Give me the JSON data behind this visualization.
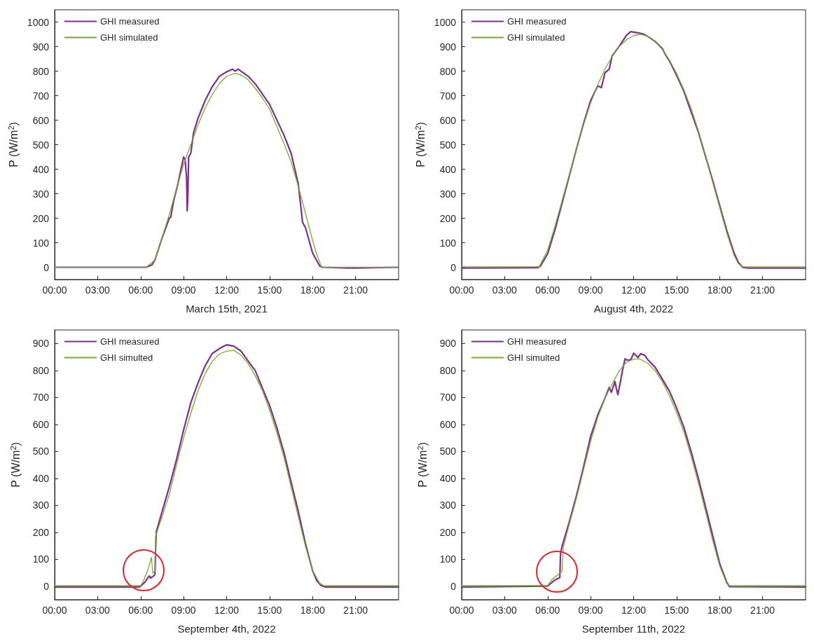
{
  "chart_data": [
    {
      "type": "line",
      "xlabel": "March 15th, 2021",
      "ylabel": "P (W/m$^{2}$)",
      "xlim": [
        0,
        24
      ],
      "ylim": [
        -50,
        1050
      ],
      "xticks": [
        {
          "value": 0,
          "label": "00:00"
        },
        {
          "value": 3,
          "label": "03:00"
        },
        {
          "value": 6,
          "label": "06:00"
        },
        {
          "value": 9,
          "label": "09:00"
        },
        {
          "value": 12,
          "label": "12:00"
        },
        {
          "value": 15,
          "label": "15:00"
        },
        {
          "value": 18,
          "label": "18:00"
        },
        {
          "value": 21,
          "label": "21:00"
        }
      ],
      "yticks": [
        0,
        100,
        200,
        300,
        400,
        500,
        600,
        700,
        800,
        900,
        1000
      ],
      "grid": false,
      "legend": "top left",
      "marker": "none",
      "line_style": "solid",
      "series": [
        {
          "name": "GHI measured",
          "color": "#7e2f8e",
          "x": [
            0,
            6.4,
            6.8,
            7,
            7.5,
            8,
            8.1,
            8.3,
            8.6,
            9,
            9.1,
            9.2,
            9.25,
            9.3,
            9.35,
            9.5,
            9.7,
            10,
            10.5,
            11,
            11.5,
            12,
            12.4,
            12.6,
            12.8,
            13.5,
            14,
            15,
            16,
            16.5,
            17,
            17.3,
            17.5,
            18,
            18.5,
            18.7,
            20.5,
            21,
            24
          ],
          "values": [
            0,
            0,
            10,
            30,
            120,
            200,
            204,
            270,
            340,
            450,
            440,
            371,
            230,
            298,
            450,
            465,
            550,
            607,
            680,
            737,
            779,
            797,
            808,
            800,
            808,
            779,
            748,
            664,
            539,
            465,
            340,
            183,
            162,
            58,
            5,
            0,
            -3,
            -3,
            0
          ]
        },
        {
          "name": "GHI simulated",
          "color": "#77ac30",
          "x": [
            0,
            6.4,
            7,
            7.5,
            8,
            8.5,
            9,
            9.5,
            10,
            10.5,
            11,
            11.5,
            12,
            12.6,
            13,
            13.5,
            14,
            14.5,
            15,
            15.5,
            16,
            16.5,
            17,
            17.5,
            18,
            18.3,
            18.6,
            18.7,
            24
          ],
          "values": [
            0,
            0,
            30,
            120,
            215,
            320,
            420,
            500,
            580,
            650,
            705,
            750,
            780,
            791,
            785,
            765,
            730,
            690,
            645,
            575,
            505,
            430,
            330,
            220,
            110,
            50,
            5,
            0,
            0
          ]
        }
      ]
    },
    {
      "type": "line",
      "xlabel": "August 4th, 2022",
      "ylabel": "P (W/m$^{2}$)",
      "xlim": [
        0,
        24
      ],
      "ylim": [
        -50,
        1050
      ],
      "xticks": [
        {
          "value": 0,
          "label": "00:00"
        },
        {
          "value": 3,
          "label": "03:00"
        },
        {
          "value": 6,
          "label": "06:00"
        },
        {
          "value": 9,
          "label": "09:00"
        },
        {
          "value": 12,
          "label": "12:00"
        },
        {
          "value": 15,
          "label": "15:00"
        },
        {
          "value": 18,
          "label": "18:00"
        },
        {
          "value": 21,
          "label": "21:00"
        }
      ],
      "yticks": [
        0,
        100,
        200,
        300,
        400,
        500,
        600,
        700,
        800,
        900,
        1000
      ],
      "grid": false,
      "legend": "top left",
      "marker": "none",
      "line_style": "solid",
      "series": [
        {
          "name": "GHI measured",
          "color": "#7e2f8e",
          "x": [
            0,
            5.3,
            5.5,
            6,
            6.5,
            7,
            7.5,
            8,
            8.5,
            9,
            9.5,
            9.75,
            10,
            10.3,
            10.5,
            11,
            11.5,
            11.8,
            12,
            12.3,
            12.7,
            13,
            13.5,
            14,
            14.2,
            14.5,
            15,
            15.5,
            16,
            16.5,
            17,
            17.5,
            18,
            18.5,
            19,
            19.3,
            19.6,
            20,
            24
          ],
          "values": [
            -3,
            -2,
            5,
            55,
            150,
            260,
            370,
            480,
            585,
            680,
            740,
            733,
            793,
            808,
            862,
            902,
            946,
            961,
            959,
            956,
            951,
            941,
            921,
            892,
            869,
            842,
            783,
            719,
            635,
            555,
            456,
            357,
            253,
            150,
            60,
            21,
            0,
            -3,
            -3
          ]
        },
        {
          "name": "GHI simulated",
          "color": "#77ac30",
          "x": [
            0,
            5.4,
            5.5,
            6,
            6.5,
            7,
            7.5,
            8,
            8.5,
            9,
            9.5,
            10,
            10.5,
            11,
            11.5,
            12,
            12.5,
            13,
            13.5,
            14,
            14.5,
            15,
            15.5,
            16,
            16.5,
            17,
            17.5,
            18,
            18.5,
            19,
            19.3,
            19.6,
            24
          ],
          "values": [
            2,
            2,
            12,
            70,
            165,
            270,
            375,
            480,
            580,
            670,
            745,
            808,
            860,
            900,
            928,
            945,
            950,
            942,
            922,
            888,
            845,
            790,
            725,
            650,
            560,
            460,
            350,
            245,
            140,
            50,
            15,
            2,
            2
          ]
        }
      ]
    },
    {
      "type": "line",
      "xlabel": "September 4th, 2022",
      "ylabel": "P (W/m$^{2}$)",
      "xlim": [
        0,
        24
      ],
      "ylim": [
        -50,
        950
      ],
      "xticks": [
        {
          "value": 0,
          "label": "00:00"
        },
        {
          "value": 3,
          "label": "03:00"
        },
        {
          "value": 6,
          "label": "06:00"
        },
        {
          "value": 9,
          "label": "09:00"
        },
        {
          "value": 12,
          "label": "12:00"
        },
        {
          "value": 15,
          "label": "15:00"
        },
        {
          "value": 18,
          "label": "18:00"
        },
        {
          "value": 21,
          "label": "21:00"
        }
      ],
      "yticks": [
        0,
        100,
        200,
        300,
        400,
        500,
        600,
        700,
        800,
        900
      ],
      "grid": false,
      "legend": "top left",
      "marker": "none",
      "line_style": "solid",
      "series": [
        {
          "name": "GHI measured",
          "color": "#7e2f8e",
          "x": [
            0,
            5.9,
            6,
            6.3,
            6.6,
            6.7,
            6.9,
            7,
            7.05,
            7.1,
            7.5,
            8,
            8.5,
            9,
            9.5,
            10,
            10.5,
            11,
            11.5,
            12,
            12.5,
            13,
            13.5,
            14,
            14.5,
            15,
            15.5,
            16,
            16.5,
            17,
            17.5,
            18,
            18.3,
            18.6,
            18.9,
            24
          ],
          "values": [
            -3,
            -3,
            0,
            15,
            38,
            30,
            38,
            43,
            148,
            203,
            277,
            368,
            469,
            579,
            680,
            753,
            817,
            863,
            881,
            895,
            890,
            872,
            835,
            799,
            734,
            670,
            588,
            496,
            386,
            277,
            158,
            57,
            20,
            2,
            -3,
            -3
          ]
        },
        {
          "name": "GHI simulted",
          "color": "#77ac30",
          "x": [
            0,
            5.9,
            6,
            6.2,
            6.5,
            6.75,
            6.85,
            7,
            7.05,
            7.1,
            7.5,
            8,
            8.5,
            9,
            9.5,
            10,
            10.5,
            11,
            11.5,
            12,
            12.5,
            13,
            13.5,
            14,
            14.5,
            15,
            15.5,
            16,
            16.5,
            17,
            17.5,
            18,
            18.5,
            18.8,
            24
          ],
          "values": [
            2,
            2,
            2,
            20,
            60,
            107,
            48,
            55,
            185,
            194,
            258,
            340,
            450,
            550,
            641,
            724,
            788,
            834,
            861,
            871,
            875,
            857,
            825,
            780,
            725,
            652,
            570,
            478,
            368,
            258,
            148,
            57,
            11,
            2,
            2
          ]
        }
      ]
    },
    {
      "type": "line",
      "xlabel": "September 11th, 2022",
      "ylabel": "P (W/m$^{2}$)",
      "xlim": [
        0,
        24
      ],
      "ylim": [
        -50,
        950
      ],
      "xticks": [
        {
          "value": 0,
          "label": "00:00"
        },
        {
          "value": 3,
          "label": "03:00"
        },
        {
          "value": 6,
          "label": "06:00"
        },
        {
          "value": 9,
          "label": "09:00"
        },
        {
          "value": 12,
          "label": "12:00"
        },
        {
          "value": 15,
          "label": "15:00"
        },
        {
          "value": 18,
          "label": "18:00"
        },
        {
          "value": 21,
          "label": "21:00"
        }
      ],
      "yticks": [
        0,
        100,
        200,
        300,
        400,
        500,
        600,
        700,
        800,
        900
      ],
      "grid": false,
      "legend": "top left",
      "marker": "none",
      "line_style": "solid",
      "series": [
        {
          "name": "GHI measured",
          "color": "#7e2f8e",
          "x": [
            0,
            6,
            6.5,
            6.85,
            6.9,
            7,
            7.5,
            8,
            8.5,
            9,
            9.5,
            10,
            10.3,
            10.45,
            10.7,
            10.8,
            10.9,
            11.05,
            11.2,
            11.4,
            11.5,
            11.8,
            12,
            12.3,
            12.5,
            12.8,
            13,
            13.5,
            14,
            14.5,
            15,
            15.5,
            16,
            16.5,
            17,
            17.5,
            18,
            18.5,
            18.7,
            24
          ],
          "values": [
            -3,
            0,
            23,
            32,
            120,
            147,
            236,
            333,
            440,
            555,
            635,
            697,
            737,
            719,
            759,
            732,
            710,
            750,
            794,
            843,
            839,
            839,
            864,
            848,
            862,
            855,
            839,
            812,
            768,
            723,
            661,
            590,
            501,
            404,
            298,
            191,
            85,
            14,
            -2,
            -3
          ]
        },
        {
          "name": "GHI simulted",
          "color": "#77ac30",
          "x": [
            0,
            6,
            6.3,
            6.9,
            7,
            7.1,
            7.5,
            8,
            8.5,
            9,
            9.5,
            10,
            10.5,
            11,
            11.5,
            12,
            12.4,
            13,
            13.5,
            14,
            14.5,
            15,
            15.5,
            16,
            16.5,
            17,
            17.5,
            18,
            18.5,
            18.7,
            24
          ],
          "values": [
            2,
            2,
            25,
            50,
            54,
            147,
            227,
            324,
            430,
            537,
            626,
            697,
            750,
            799,
            830,
            842,
            843,
            826,
            799,
            759,
            706,
            644,
            573,
            484,
            386,
            280,
            173,
            76,
            10,
            2,
            2
          ]
        }
      ]
    }
  ]
}
